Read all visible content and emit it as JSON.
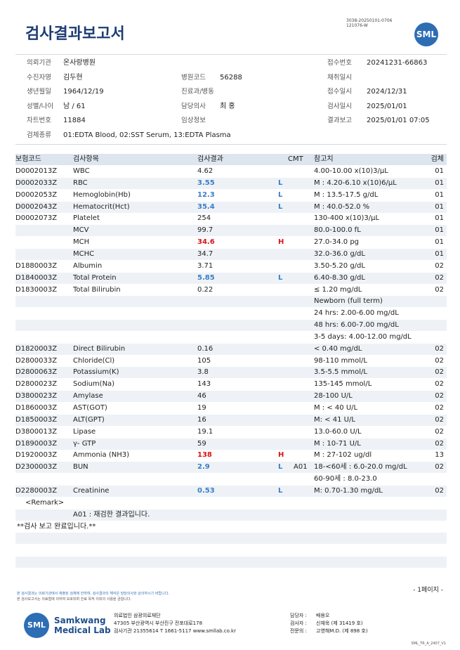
{
  "header": {
    "title": "검사결과보고서",
    "doc_code": [
      "3038-20250101-0706",
      "121076-W"
    ],
    "logo": "SML"
  },
  "info": {
    "rows": [
      {
        "left": {
          "label": "의뢰기관",
          "value": "온사랑병원"
        },
        "right": {
          "label": "접수번호",
          "value": "20241231-66863"
        }
      },
      {
        "left": {
          "label": "수진자명",
          "value": "김두현"
        },
        "middle": {
          "label": "병원코드",
          "value": "56288"
        },
        "right": {
          "label": "채취일시"
        }
      },
      {
        "left": {
          "label": "생년월일",
          "value": "1964/12/19"
        },
        "middle": {
          "label": "진료과/병동"
        },
        "right": {
          "label": "접수일시",
          "value": "2024/12/31"
        }
      },
      {
        "left": {
          "label": "성별/나이",
          "value": "남 / 61"
        },
        "middle": {
          "label": "담당의사",
          "value": "최 홍"
        },
        "right": {
          "label": "검사일시",
          "value": "2025/01/01"
        }
      },
      {
        "left": {
          "label": "차트번호",
          "value": "11884"
        },
        "middle": {
          "label": "임상정보"
        },
        "right": {
          "label": "결과보고",
          "value": "2025/01/01 07:05"
        }
      },
      {
        "left": {
          "label": "검체종류",
          "value": "01:EDTA Blood, 02:SST Serum, 13:EDTA Plasma"
        }
      }
    ]
  },
  "table": {
    "columns": {
      "code": "보험코드",
      "name": "검사항목",
      "result": "검사결과",
      "cmt": "CMT",
      "reference": "참고치",
      "specimen": "검체"
    },
    "flag_colors": {
      "L": "#3a7ec6",
      "H": "#d7141a"
    },
    "rows": [
      {
        "code": "D0002013Z",
        "name": "WBC",
        "result": "4.62",
        "reference": "4.00-10.00 x(10)3/μL",
        "specimen": "01"
      },
      {
        "code": "D0002033Z",
        "name": "RBC",
        "result": "3.55",
        "flag": "L",
        "reference": "M : 4.20-6.10 x(10)6/μL",
        "specimen": "01"
      },
      {
        "code": "D0002053Z",
        "name": "Hemoglobin(Hb)",
        "result": "12.3",
        "flag": "L",
        "reference": "M : 13.5-17.5 g/dL",
        "specimen": "01"
      },
      {
        "code": "D0002043Z",
        "name": "Hematocrit(Hct)",
        "result": "35.4",
        "flag": "L",
        "reference": "M : 40.0-52.0 %",
        "specimen": "01"
      },
      {
        "code": "D0002073Z",
        "name": "Platelet",
        "result": "254",
        "reference": "130-400 x(10)3/μL",
        "specimen": "01"
      },
      {
        "name": "MCV",
        "result": "99.7",
        "reference": "80.0-100.0 fL",
        "specimen": "01"
      },
      {
        "name": "MCH",
        "result": "34.6",
        "flag": "H",
        "reference": "27.0-34.0 pg",
        "specimen": "01"
      },
      {
        "name": "MCHC",
        "result": "34.7",
        "reference": "32.0-36.0 g/dL",
        "specimen": "01"
      },
      {
        "code": "D1880003Z",
        "name": "Albumin",
        "result": "3.71",
        "reference": "3.50-5.20 g/dL",
        "specimen": "02"
      },
      {
        "code": "D1840003Z",
        "name": "Total Protein",
        "result": "5.85",
        "flag": "L",
        "reference": "6.40-8.30 g/dL",
        "specimen": "02"
      },
      {
        "code": "D1830003Z",
        "name": "Total Bilirubin",
        "result": "0.22",
        "reference": "≤ 1.20 mg/dL",
        "specimen": "02"
      },
      {
        "reference": "Newborn (full term)"
      },
      {
        "reference": "24 hrs: 2.00-6.00 mg/dL"
      },
      {
        "reference": "48 hrs: 6.00-7.00 mg/dL"
      },
      {
        "reference": "3-5 days: 4.00-12.00 mg/dL"
      },
      {
        "code": "D1820003Z",
        "name": "Direct Bilirubin",
        "result": "0.16",
        "reference": "< 0.40 mg/dL",
        "specimen": "02"
      },
      {
        "code": "D2800033Z",
        "name": "Chloride(Cl)",
        "result": "105",
        "reference": "98-110 mmol/L",
        "specimen": "02"
      },
      {
        "code": "D2800063Z",
        "name": "Potassium(K)",
        "result": "3.8",
        "reference": "3.5-5.5 mmol/L",
        "specimen": "02"
      },
      {
        "code": "D2800023Z",
        "name": "Sodium(Na)",
        "result": "143",
        "reference": "135-145 mmol/L",
        "specimen": "02"
      },
      {
        "code": "D3800023Z",
        "name": "Amylase",
        "result": "46",
        "reference": "28-100 U/L",
        "specimen": "02"
      },
      {
        "code": "D1860003Z",
        "name": "AST(GOT)",
        "result": "19",
        "reference": "M : < 40 U/L",
        "specimen": "02"
      },
      {
        "code": "D1850003Z",
        "name": "ALT(GPT)",
        "result": "16",
        "reference": "M: < 41 U/L",
        "specimen": "02"
      },
      {
        "code": "D3800013Z",
        "name": "Lipase",
        "result": "19.1",
        "reference": "13.0-60.0 U/L",
        "specimen": "02"
      },
      {
        "code": "D1890003Z",
        "name": "γ- GTP",
        "result": "59",
        "reference": "M : 10-71 U/L",
        "specimen": "02"
      },
      {
        "code": "D1920003Z",
        "name": "Ammonia (NH3)",
        "result": "138",
        "flag": "H",
        "reference": "M : 27-102 ug/dl",
        "specimen": "13"
      },
      {
        "code": "D2300003Z",
        "name": "BUN",
        "result": "2.9",
        "flag": "L",
        "cmt": "A01",
        "reference": "18-<60세 : 6.0-20.0 mg/dL",
        "specimen": "02"
      },
      {
        "reference": "60-90세 : 8.0-23.0"
      },
      {
        "code": "D2280003Z",
        "name": "Creatinine",
        "result": "0.53",
        "flag": "L",
        "reference": "M: 0.70-1.30 mg/dL",
        "specimen": "02"
      }
    ]
  },
  "remark": {
    "title": "<Remark>",
    "note": "A01 : 재검한 결과입니다.",
    "complete": "**검사 보고 완료입니다.**"
  },
  "footer": {
    "notes": [
      "본 검사결과는 의뢰기관에서 제출된 검체에 한하며, 검사결과의 해석은 담당의사와 상의하시기 바랍니다.",
      "본 검사보고서는 의료법에 의하여 보호되며 진료 목적 이외의 사용을 금합니다."
    ],
    "page": "- 1페이지 -",
    "logo": "SML",
    "org_en": [
      "Samkwang",
      "Medical Lab"
    ],
    "org": [
      "의료법인 삼광의료재단",
      "47305 부산광역시 부산진구 전포대로178",
      "검사기관 21355614 T 1661-5117 www.smllab.co.kr"
    ],
    "staff": [
      {
        "role": "담당자 :",
        "name": "배용오"
      },
      {
        "role": "검사자 :",
        "name": "신재욱 (제 31419 호)"
      },
      {
        "role": "전문의 :",
        "name": "고영해M.D. (제 898 호)"
      }
    ],
    "form_code": "SML_TR_A_2407_V1"
  }
}
